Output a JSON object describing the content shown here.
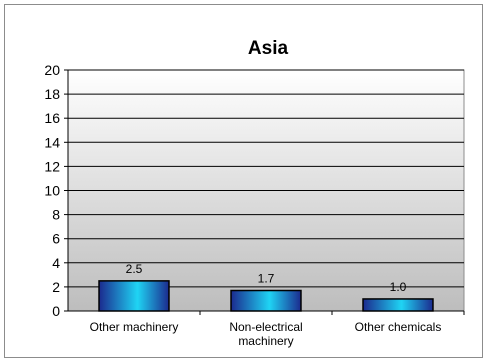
{
  "chart_data": {
    "type": "bar",
    "title": "Asia",
    "xlabel": "",
    "ylabel": "",
    "categories": [
      [
        "Other machinery"
      ],
      [
        "Non-electrical",
        "machinery"
      ],
      [
        "Other chemicals"
      ]
    ],
    "values": [
      2.5,
      1.7,
      1.0
    ],
    "data_labels": [
      "2.5",
      "1.7",
      "1.0"
    ],
    "ylim": [
      0,
      20
    ],
    "yticks": [
      "0",
      "2",
      "4",
      "6",
      "8",
      "10",
      "12",
      "14",
      "16",
      "18",
      "20"
    ],
    "grid": true,
    "legend": "none",
    "colors": {
      "bar_dark": "#1b2a8e",
      "bar_light": "#1fd4f4",
      "plot_top": "#ffffff",
      "plot_bottom": "#bdbdbd",
      "grid": "#000000"
    }
  }
}
